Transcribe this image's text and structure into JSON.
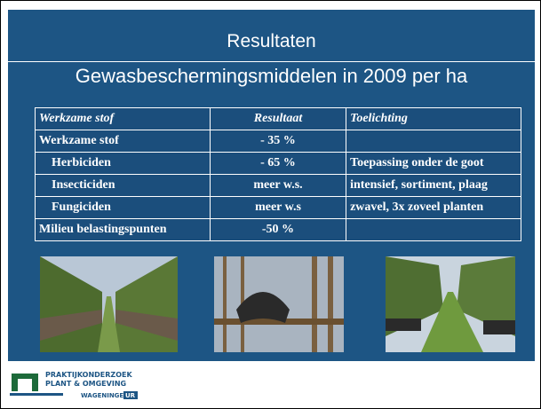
{
  "header": {
    "title": "Resultaten",
    "subtitle": "Gewasbeschermingsmiddelen in 2009 per ha"
  },
  "table": {
    "columns": [
      "Werkzame stof",
      "Resultaat",
      "Toelichting"
    ],
    "rows": [
      [
        "Werkzame stof",
        "- 35 %"
      ],
      [
        "Herbiciden",
        "- 65 %",
        "Toepassing onder de goot"
      ],
      [
        "Insecticiden",
        "meer w.s.",
        "intensief, sortiment, plaag"
      ],
      [
        "Fungiciden",
        "meer w.s",
        "zwavel, 3x zoveel planten"
      ],
      [
        "Milieu belastingspunten",
        "-50 %"
      ]
    ]
  },
  "logo": {
    "line1": "PRAKTIJKONDERZOEK",
    "line2": "PLANT & OMGEVING",
    "line3": "WAGENINGEN",
    "line4": "UR"
  }
}
